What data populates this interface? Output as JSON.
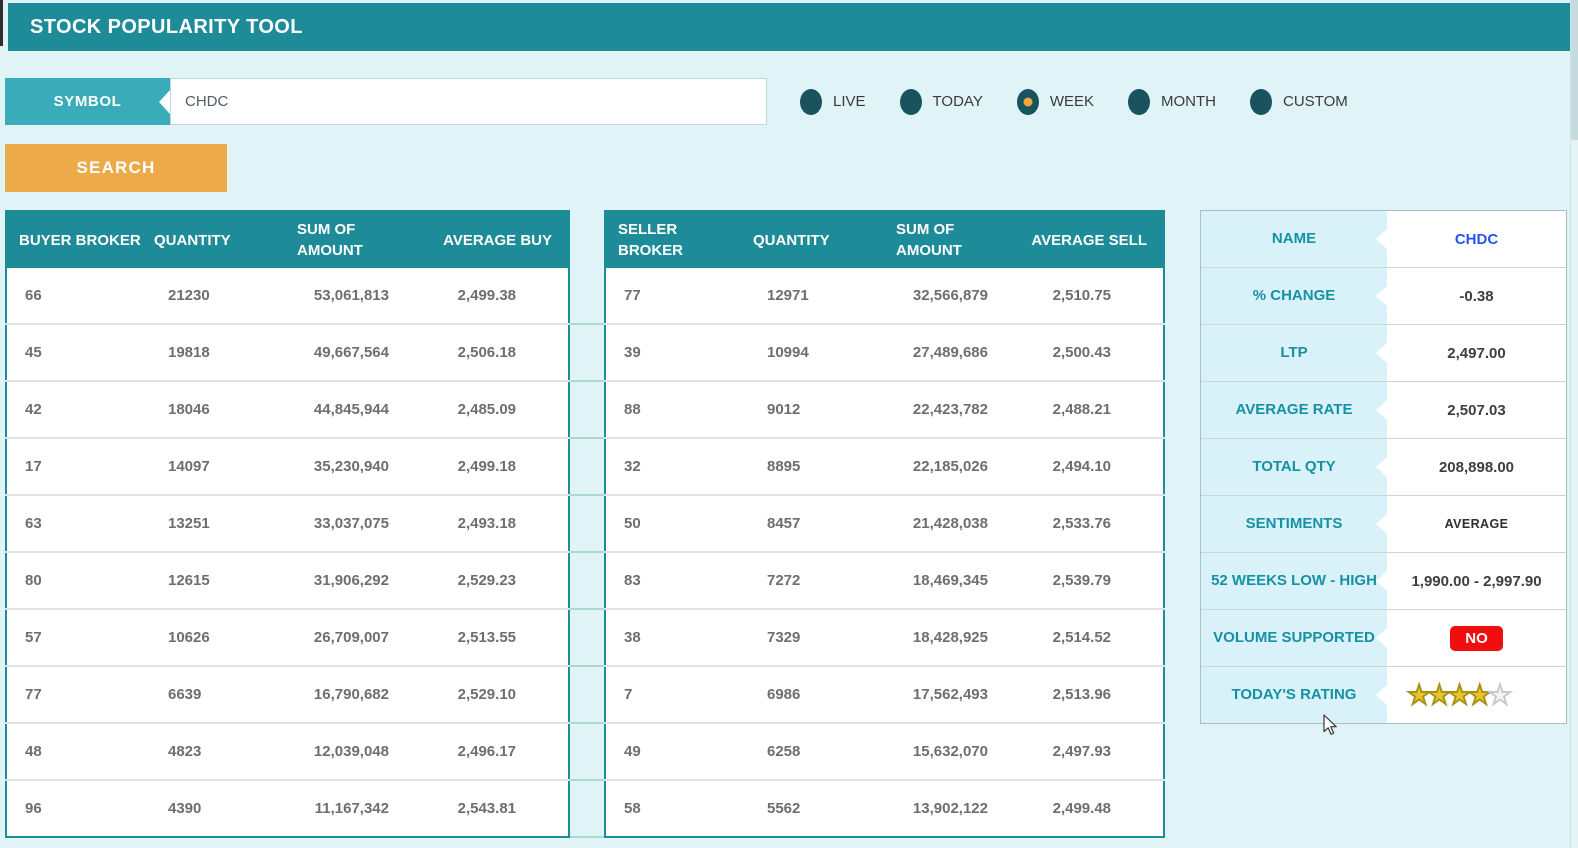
{
  "app": {
    "title": "STOCK POPULARITY TOOL"
  },
  "search": {
    "symbol_label": "SYMBOL",
    "symbol_value": "CHDC",
    "button_label": "SEARCH"
  },
  "periods": [
    {
      "label": "LIVE",
      "selected": false
    },
    {
      "label": "TODAY",
      "selected": false
    },
    {
      "label": "WEEK",
      "selected": true
    },
    {
      "label": "MONTH",
      "selected": false
    },
    {
      "label": "CUSTOM",
      "selected": false
    }
  ],
  "buyer_table": {
    "headers": [
      "BUYER BROKER",
      "QUANTITY",
      "SUM OF AMOUNT",
      "AVERAGE BUY"
    ],
    "rows": [
      [
        "66",
        "21230",
        "53,061,813",
        "2,499.38"
      ],
      [
        "45",
        "19818",
        "49,667,564",
        "2,506.18"
      ],
      [
        "42",
        "18046",
        "44,845,944",
        "2,485.09"
      ],
      [
        "17",
        "14097",
        "35,230,940",
        "2,499.18"
      ],
      [
        "63",
        "13251",
        "33,037,075",
        "2,493.18"
      ],
      [
        "80",
        "12615",
        "31,906,292",
        "2,529.23"
      ],
      [
        "57",
        "10626",
        "26,709,007",
        "2,513.55"
      ],
      [
        "77",
        "6639",
        "16,790,682",
        "2,529.10"
      ],
      [
        "48",
        "4823",
        "12,039,048",
        "2,496.17"
      ],
      [
        "96",
        "4390",
        "11,167,342",
        "2,543.81"
      ]
    ]
  },
  "seller_table": {
    "headers": [
      "SELLER BROKER",
      "QUANTITY",
      "SUM OF AMOUNT",
      "AVERAGE SELL"
    ],
    "rows": [
      [
        "77",
        "12971",
        "32,566,879",
        "2,510.75"
      ],
      [
        "39",
        "10994",
        "27,489,686",
        "2,500.43"
      ],
      [
        "88",
        "9012",
        "22,423,782",
        "2,488.21"
      ],
      [
        "32",
        "8895",
        "22,185,026",
        "2,494.10"
      ],
      [
        "50",
        "8457",
        "21,428,038",
        "2,533.76"
      ],
      [
        "83",
        "7272",
        "18,469,345",
        "2,539.79"
      ],
      [
        "38",
        "7329",
        "18,428,925",
        "2,514.52"
      ],
      [
        "7",
        "6986",
        "17,562,493",
        "2,513.96"
      ],
      [
        "49",
        "6258",
        "15,632,070",
        "2,497.93"
      ],
      [
        "58",
        "5562",
        "13,902,122",
        "2,499.48"
      ]
    ]
  },
  "info_panel": {
    "rows": [
      {
        "label": "NAME",
        "value": "CHDC",
        "style": "link"
      },
      {
        "label": "% CHANGE",
        "value": "-0.38",
        "style": "normal"
      },
      {
        "label": "LTP",
        "value": "2,497.00",
        "style": "normal"
      },
      {
        "label": "AVERAGE RATE",
        "value": "2,507.03",
        "style": "normal"
      },
      {
        "label": "TOTAL QTY",
        "value": "208,898.00",
        "style": "normal"
      },
      {
        "label": "SENTIMENTS",
        "value": "AVERAGE",
        "style": "small"
      },
      {
        "label": "52 WEEKS LOW - HIGH",
        "value": "1,990.00 - 2,997.90",
        "style": "normal"
      },
      {
        "label": "VOLUME SUPPORTED",
        "value": "NO",
        "style": "badge"
      },
      {
        "label": "TODAY'S RATING",
        "value": "",
        "style": "rating",
        "rating": {
          "filled": 4,
          "total": 5
        }
      }
    ]
  },
  "icons": {
    "radio": "radio-icon",
    "star": "star-icon",
    "cursor": "cursor-icon"
  },
  "colors": {
    "header_teal": "#1e8b99",
    "tag_teal": "#3aabb8",
    "page_bg": "#e0f4f8",
    "accent_orange": "#edaa4a",
    "radio_dark_teal": "#19545e",
    "radio_selected_orange": "#f2a63d",
    "badge_red": "#f10e0e",
    "star_gold": "#e7c62b",
    "name_link_blue": "#2356f0",
    "row_text_gray": "#6e6e6e"
  }
}
